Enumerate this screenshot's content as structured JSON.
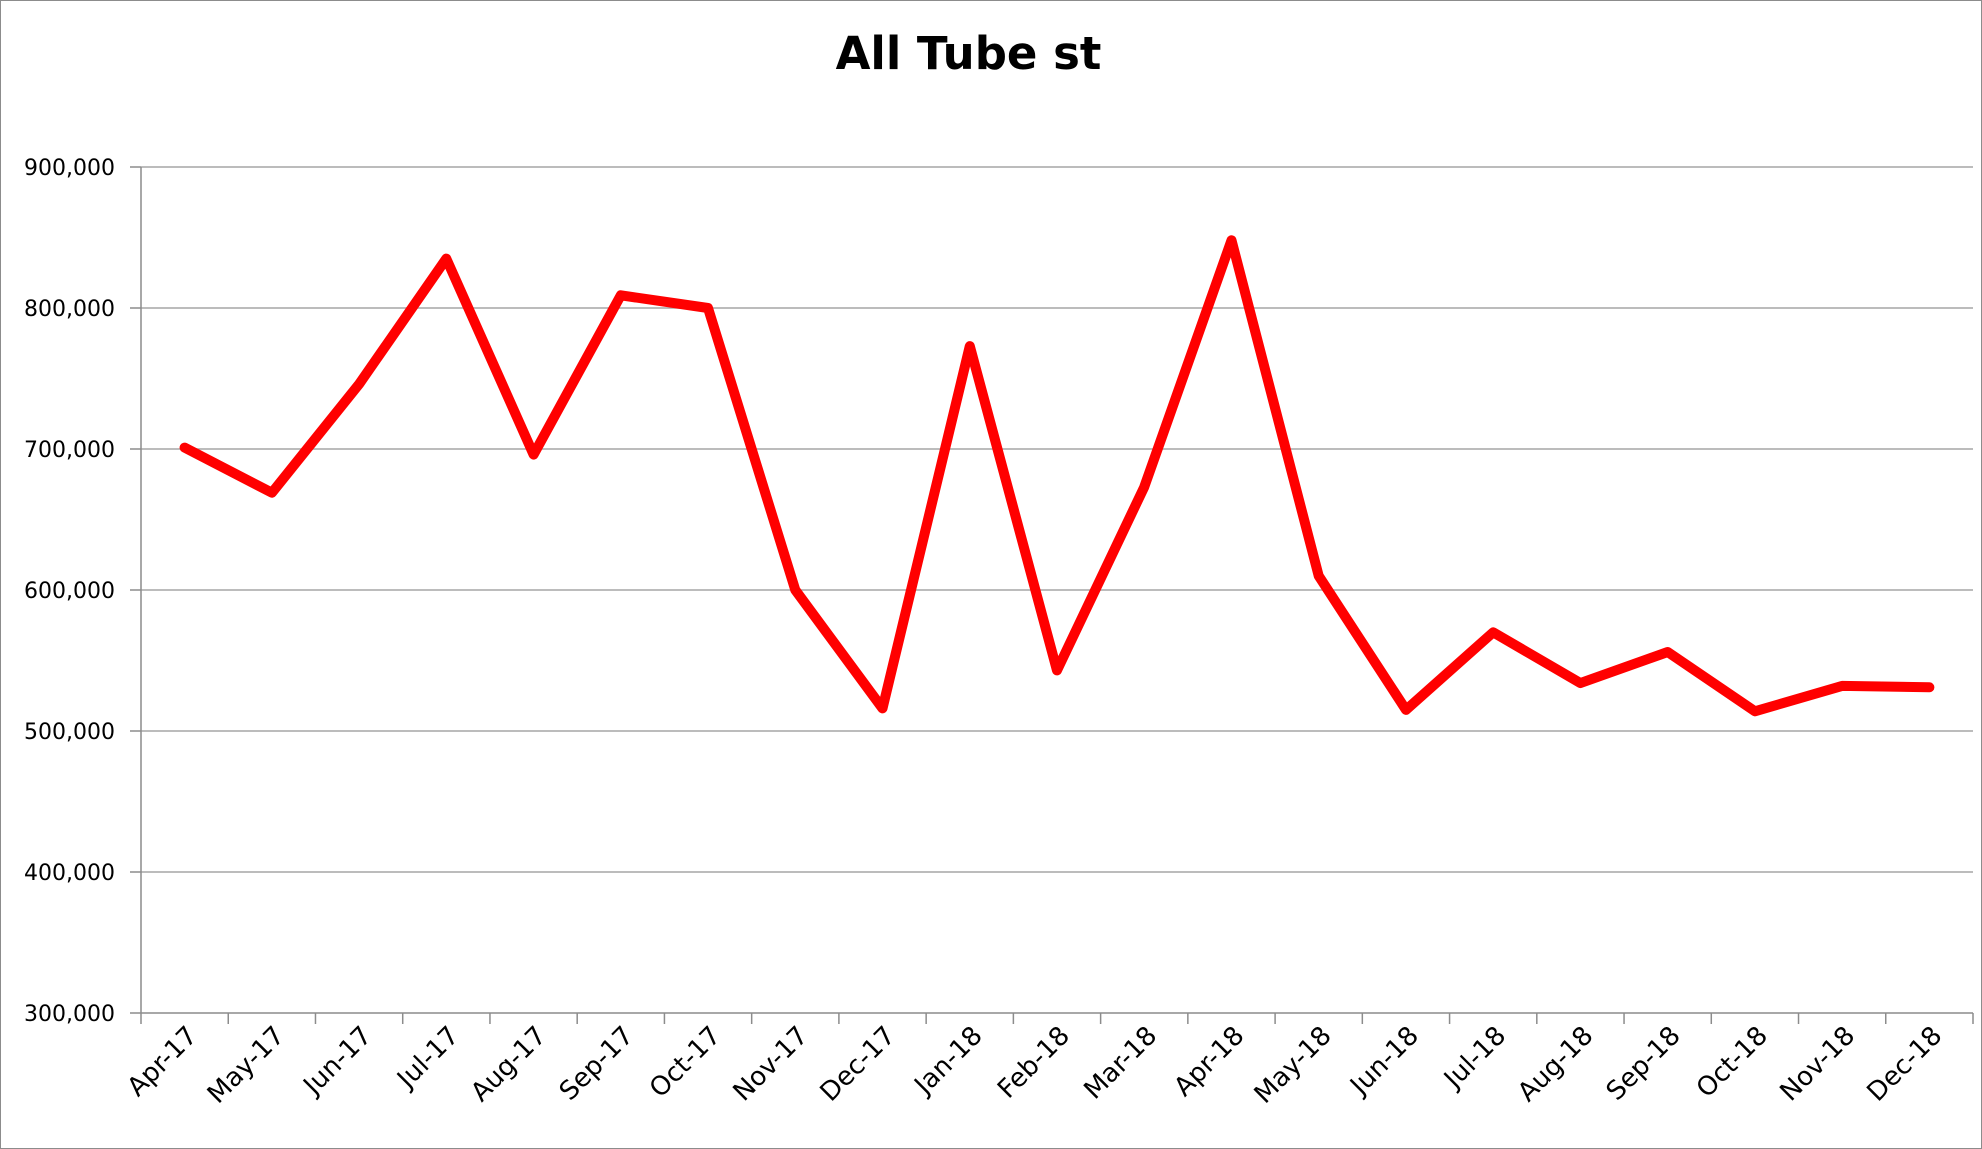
{
  "chart_data": {
    "type": "line",
    "title": "All Tube st",
    "xlabel": "",
    "ylabel": "",
    "categories": [
      "Apr-17",
      "May-17",
      "Jun-17",
      "Jul-17",
      "Aug-17",
      "Sep-17",
      "Oct-17",
      "Nov-17",
      "Dec-17",
      "Jan-18",
      "Feb-18",
      "Mar-18",
      "Apr-18",
      "May-18",
      "Jun-18",
      "Jul-18",
      "Aug-18",
      "Sep-18",
      "Oct-18",
      "Nov-18",
      "Dec-18"
    ],
    "series": [
      {
        "values": [
          701000,
          669000,
          746000,
          835000,
          696000,
          809000,
          800000,
          600000,
          516000,
          773000,
          543000,
          673000,
          848000,
          610000,
          515000,
          570000,
          534000,
          556000,
          514000,
          532000,
          531000
        ]
      }
    ],
    "ylim": [
      300000,
      900000
    ],
    "yticks": [
      300000,
      400000,
      500000,
      600000,
      700000,
      800000,
      900000
    ],
    "ytick_labels": [
      "300,000",
      "400,000",
      "500,000",
      "600,000",
      "700,000",
      "800,000",
      "900,000"
    ],
    "grid": true,
    "legend": "none",
    "colors": {
      "line": "#ff0000",
      "grid": "#a6a6a6",
      "axis": "#8c8c8c"
    }
  }
}
